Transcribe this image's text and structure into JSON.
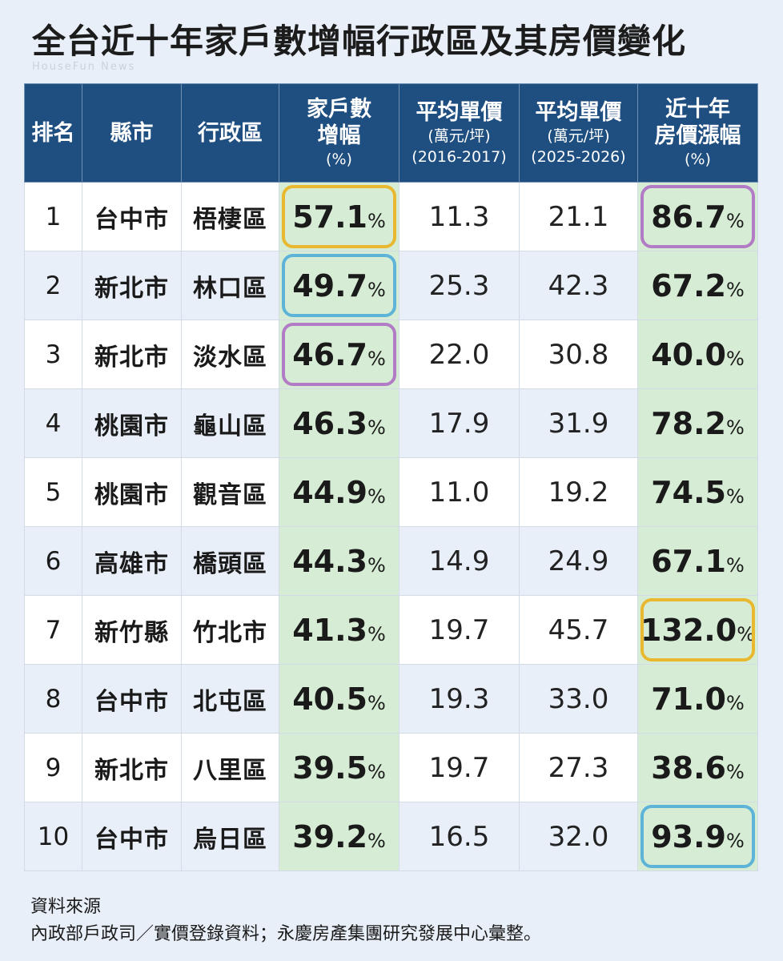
{
  "title": "全台近十年家戶數增幅行政區及其房價變化",
  "watermark": "HouseFun News",
  "colors": {
    "header_bg": "#1f4e80",
    "highlight_col_bg": "#d6ecd4",
    "ring_yellow": "#e8b830",
    "ring_blue": "#5eb4d8",
    "ring_purple": "#b27bc6"
  },
  "chart_data": {
    "type": "table",
    "title": "全台近十年家戶數增幅行政區及其房價變化",
    "columns": [
      {
        "label": "排名"
      },
      {
        "label": "縣市"
      },
      {
        "label": "行政區"
      },
      {
        "label": "家戶數",
        "label2": "增幅",
        "label3": "(%)"
      },
      {
        "label": "平均單價",
        "label2": "(萬元/坪)",
        "label3": "(2016-2017)"
      },
      {
        "label": "平均單價",
        "label2": "(萬元/坪)",
        "label3": "(2025-2026)"
      },
      {
        "label": "近十年",
        "label2": "房價漲幅",
        "label3": "(%)"
      }
    ],
    "unit": "%",
    "rows": [
      {
        "rank": "1",
        "city": "台中市",
        "district": "梧棲區",
        "household_growth": "57.1",
        "price_2016_2017": "11.3",
        "price_2025_2026": "21.1",
        "price_growth": "86.7",
        "ring_growth": "yellow",
        "ring_price": "purple"
      },
      {
        "rank": "2",
        "city": "新北市",
        "district": "林口區",
        "household_growth": "49.7",
        "price_2016_2017": "25.3",
        "price_2025_2026": "42.3",
        "price_growth": "67.2",
        "ring_growth": "blue",
        "ring_price": ""
      },
      {
        "rank": "3",
        "city": "新北市",
        "district": "淡水區",
        "household_growth": "46.7",
        "price_2016_2017": "22.0",
        "price_2025_2026": "30.8",
        "price_growth": "40.0",
        "ring_growth": "purple",
        "ring_price": ""
      },
      {
        "rank": "4",
        "city": "桃園市",
        "district": "龜山區",
        "household_growth": "46.3",
        "price_2016_2017": "17.9",
        "price_2025_2026": "31.9",
        "price_growth": "78.2",
        "ring_growth": "",
        "ring_price": ""
      },
      {
        "rank": "5",
        "city": "桃園市",
        "district": "觀音區",
        "household_growth": "44.9",
        "price_2016_2017": "11.0",
        "price_2025_2026": "19.2",
        "price_growth": "74.5",
        "ring_growth": "",
        "ring_price": ""
      },
      {
        "rank": "6",
        "city": "高雄市",
        "district": "橋頭區",
        "household_growth": "44.3",
        "price_2016_2017": "14.9",
        "price_2025_2026": "24.9",
        "price_growth": "67.1",
        "ring_growth": "",
        "ring_price": ""
      },
      {
        "rank": "7",
        "city": "新竹縣",
        "district": "竹北市",
        "household_growth": "41.3",
        "price_2016_2017": "19.7",
        "price_2025_2026": "45.7",
        "price_growth": "132.0",
        "ring_growth": "",
        "ring_price": "yellow"
      },
      {
        "rank": "8",
        "city": "台中市",
        "district": "北屯區",
        "household_growth": "40.5",
        "price_2016_2017": "19.3",
        "price_2025_2026": "33.0",
        "price_growth": "71.0",
        "ring_growth": "",
        "ring_price": ""
      },
      {
        "rank": "9",
        "city": "新北市",
        "district": "八里區",
        "household_growth": "39.5",
        "price_2016_2017": "19.7",
        "price_2025_2026": "27.3",
        "price_growth": "38.6",
        "ring_growth": "",
        "ring_price": ""
      },
      {
        "rank": "10",
        "city": "台中市",
        "district": "烏日區",
        "household_growth": "39.2",
        "price_2016_2017": "16.5",
        "price_2025_2026": "32.0",
        "price_growth": "93.9",
        "ring_growth": "",
        "ring_price": "blue"
      }
    ]
  },
  "footer": {
    "heading": "資料來源",
    "text": "內政部戶政司／實價登錄資料；永慶房產集團研究發展中心彙整。"
  }
}
